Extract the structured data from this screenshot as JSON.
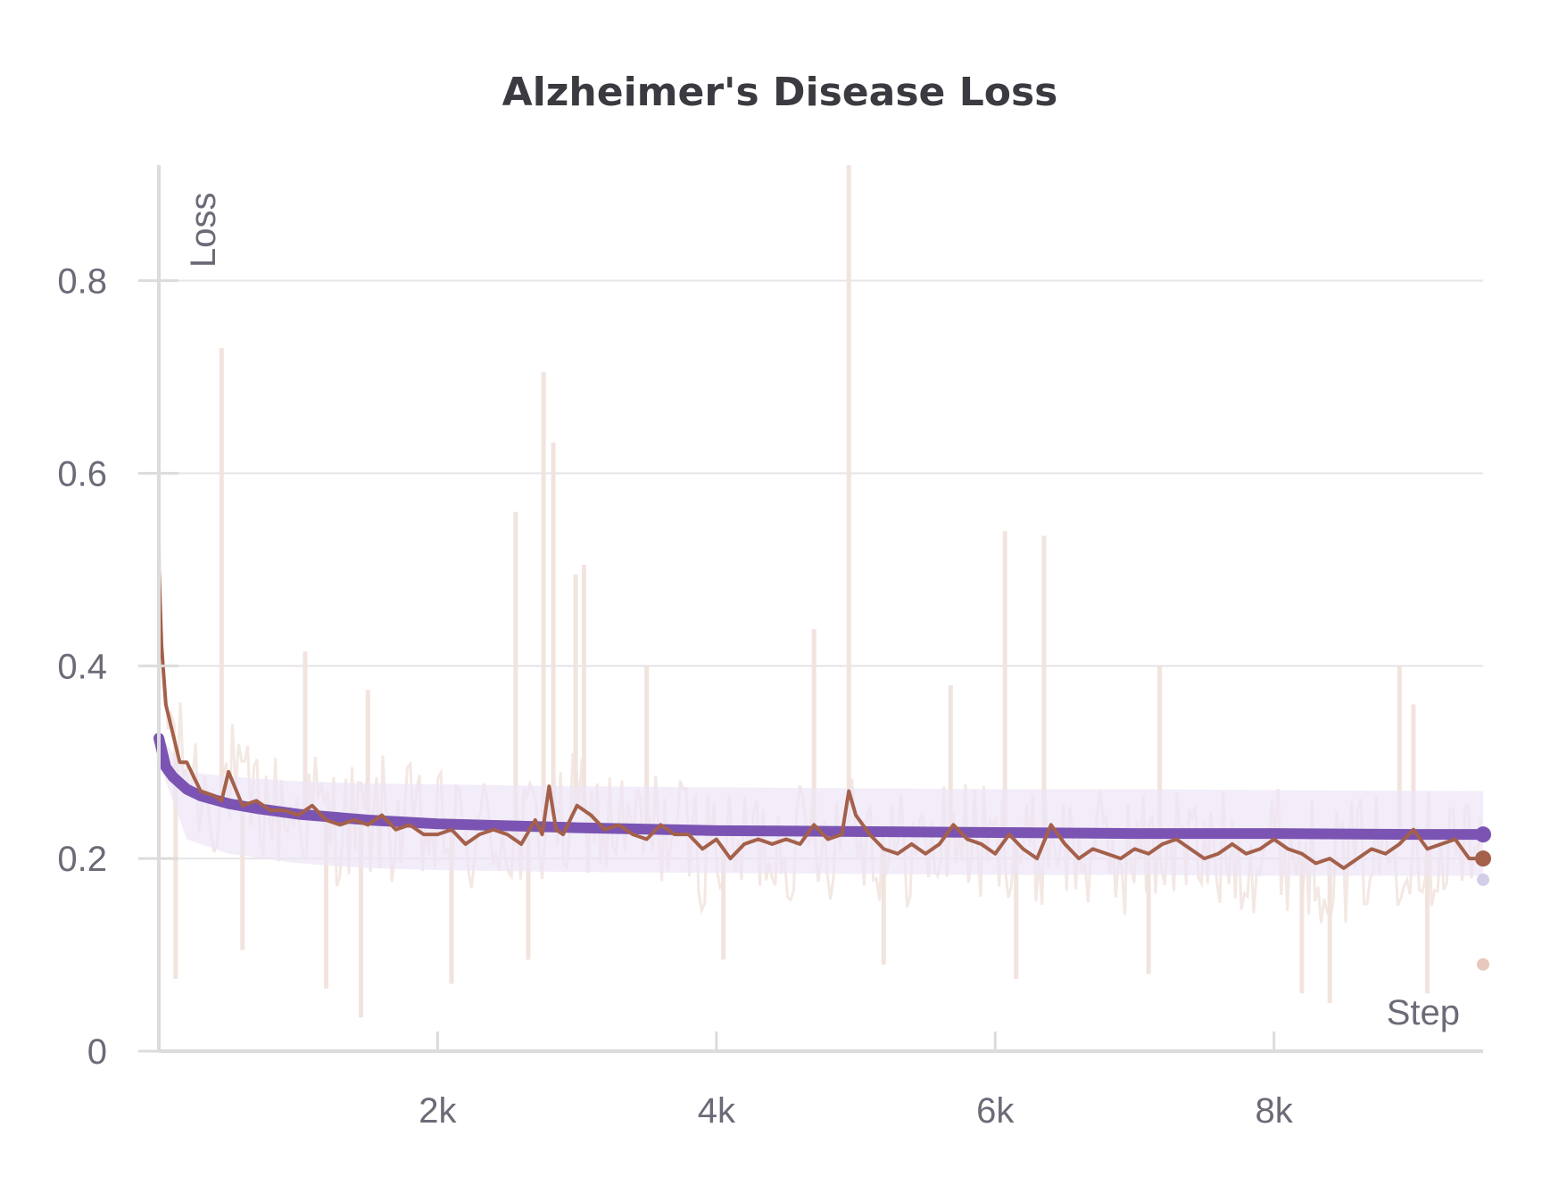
{
  "chart_data": {
    "type": "line",
    "title": "Alzheimer's Disease Loss",
    "xlabel": "Step",
    "ylabel": "Loss",
    "xlim": [
      0,
      9500
    ],
    "ylim": [
      0,
      0.92
    ],
    "grid": true,
    "x_ticks": [
      {
        "value": 2000,
        "label": "2k"
      },
      {
        "value": 4000,
        "label": "4k"
      },
      {
        "value": 6000,
        "label": "6k"
      },
      {
        "value": 8000,
        "label": "8k"
      }
    ],
    "y_ticks": [
      {
        "value": 0,
        "label": "0"
      },
      {
        "value": 0.2,
        "label": "0.2"
      },
      {
        "value": 0.4,
        "label": "0.4"
      },
      {
        "value": 0.6,
        "label": "0.6"
      },
      {
        "value": 0.8,
        "label": "0.8"
      }
    ],
    "series": [
      {
        "role": "band",
        "color": "#ece6f6",
        "x": [
          0,
          200,
          500,
          1000,
          1500,
          2000,
          3000,
          4000,
          5000,
          6000,
          7000,
          8000,
          9500
        ],
        "upper": [
          0.33,
          0.29,
          0.285,
          0.28,
          0.278,
          0.277,
          0.275,
          0.274,
          0.273,
          0.272,
          0.272,
          0.271,
          0.27
        ],
        "lower": [
          0.3,
          0.22,
          0.205,
          0.195,
          0.19,
          0.188,
          0.186,
          0.185,
          0.184,
          0.183,
          0.183,
          0.182,
          0.182
        ]
      },
      {
        "role": "smoothed",
        "color": "#7b54b3",
        "x": [
          0,
          50,
          100,
          200,
          300,
          500,
          700,
          1000,
          1500,
          2000,
          3000,
          4000,
          5000,
          6000,
          7000,
          8000,
          9000,
          9500
        ],
        "y": [
          0.325,
          0.295,
          0.285,
          0.272,
          0.265,
          0.257,
          0.252,
          0.246,
          0.24,
          0.236,
          0.232,
          0.229,
          0.228,
          0.227,
          0.226,
          0.226,
          0.225,
          0.225
        ]
      },
      {
        "role": "smoothed",
        "color": "#a4604a",
        "x": [
          0,
          20,
          50,
          100,
          150,
          200,
          300,
          400,
          450,
          500,
          600,
          700,
          800,
          900,
          1000,
          1100,
          1200,
          1300,
          1400,
          1500,
          1600,
          1700,
          1800,
          1900,
          2000,
          2100,
          2200,
          2300,
          2400,
          2500,
          2600,
          2700,
          2750,
          2800,
          2850,
          2900,
          3000,
          3100,
          3200,
          3300,
          3400,
          3500,
          3600,
          3700,
          3800,
          3900,
          4000,
          4100,
          4200,
          4300,
          4400,
          4500,
          4600,
          4700,
          4800,
          4900,
          4950,
          5000,
          5100,
          5200,
          5300,
          5400,
          5500,
          5600,
          5700,
          5800,
          5900,
          6000,
          6100,
          6200,
          6300,
          6400,
          6500,
          6600,
          6700,
          6800,
          6900,
          7000,
          7100,
          7200,
          7300,
          7400,
          7500,
          7600,
          7700,
          7800,
          7900,
          8000,
          8100,
          8200,
          8300,
          8400,
          8500,
          8600,
          8700,
          8800,
          8900,
          9000,
          9100,
          9200,
          9300,
          9400,
          9500
        ],
        "y": [
          0.5,
          0.42,
          0.36,
          0.33,
          0.3,
          0.3,
          0.27,
          0.265,
          0.26,
          0.29,
          0.255,
          0.26,
          0.25,
          0.25,
          0.245,
          0.255,
          0.24,
          0.235,
          0.24,
          0.235,
          0.245,
          0.23,
          0.235,
          0.225,
          0.225,
          0.23,
          0.215,
          0.225,
          0.23,
          0.225,
          0.215,
          0.24,
          0.225,
          0.275,
          0.23,
          0.225,
          0.255,
          0.245,
          0.23,
          0.235,
          0.225,
          0.22,
          0.235,
          0.225,
          0.225,
          0.21,
          0.22,
          0.2,
          0.215,
          0.22,
          0.215,
          0.22,
          0.215,
          0.235,
          0.22,
          0.225,
          0.27,
          0.245,
          0.225,
          0.21,
          0.205,
          0.215,
          0.205,
          0.215,
          0.235,
          0.22,
          0.215,
          0.205,
          0.225,
          0.21,
          0.2,
          0.235,
          0.215,
          0.2,
          0.21,
          0.205,
          0.2,
          0.21,
          0.205,
          0.215,
          0.22,
          0.21,
          0.2,
          0.205,
          0.215,
          0.205,
          0.21,
          0.22,
          0.21,
          0.205,
          0.195,
          0.2,
          0.19,
          0.2,
          0.21,
          0.205,
          0.215,
          0.23,
          0.21,
          0.215,
          0.22,
          0.2,
          0.2
        ]
      }
    ],
    "end_markers": [
      {
        "y": 0.225,
        "color": "#7b54b3"
      },
      {
        "y": 0.2,
        "color": "#a4604a"
      },
      {
        "y": 0.178,
        "color": "#d4cde8"
      },
      {
        "y": 0.09,
        "color": "#e8c8bc"
      }
    ],
    "raw_spikes": [
      {
        "x": 450,
        "y": 0.73
      },
      {
        "x": 1050,
        "y": 0.415
      },
      {
        "x": 1500,
        "y": 0.375
      },
      {
        "x": 2560,
        "y": 0.56
      },
      {
        "x": 2760,
        "y": 0.705
      },
      {
        "x": 2830,
        "y": 0.632
      },
      {
        "x": 2990,
        "y": 0.495
      },
      {
        "x": 3050,
        "y": 0.505
      },
      {
        "x": 3500,
        "y": 0.4
      },
      {
        "x": 4700,
        "y": 0.438
      },
      {
        "x": 4950,
        "y": 0.92
      },
      {
        "x": 5680,
        "y": 0.38
      },
      {
        "x": 6070,
        "y": 0.54
      },
      {
        "x": 6350,
        "y": 0.535
      },
      {
        "x": 7180,
        "y": 0.4
      },
      {
        "x": 8900,
        "y": 0.4
      },
      {
        "x": 9000,
        "y": 0.36
      }
    ],
    "raw_dips": [
      {
        "x": 120,
        "y": 0.075
      },
      {
        "x": 600,
        "y": 0.105
      },
      {
        "x": 1200,
        "y": 0.065
      },
      {
        "x": 1450,
        "y": 0.035
      },
      {
        "x": 2100,
        "y": 0.07
      },
      {
        "x": 2650,
        "y": 0.095
      },
      {
        "x": 4050,
        "y": 0.095
      },
      {
        "x": 5200,
        "y": 0.09
      },
      {
        "x": 6150,
        "y": 0.075
      },
      {
        "x": 7100,
        "y": 0.08
      },
      {
        "x": 8200,
        "y": 0.06
      },
      {
        "x": 8400,
        "y": 0.05
      },
      {
        "x": 9100,
        "y": 0.06
      }
    ]
  }
}
